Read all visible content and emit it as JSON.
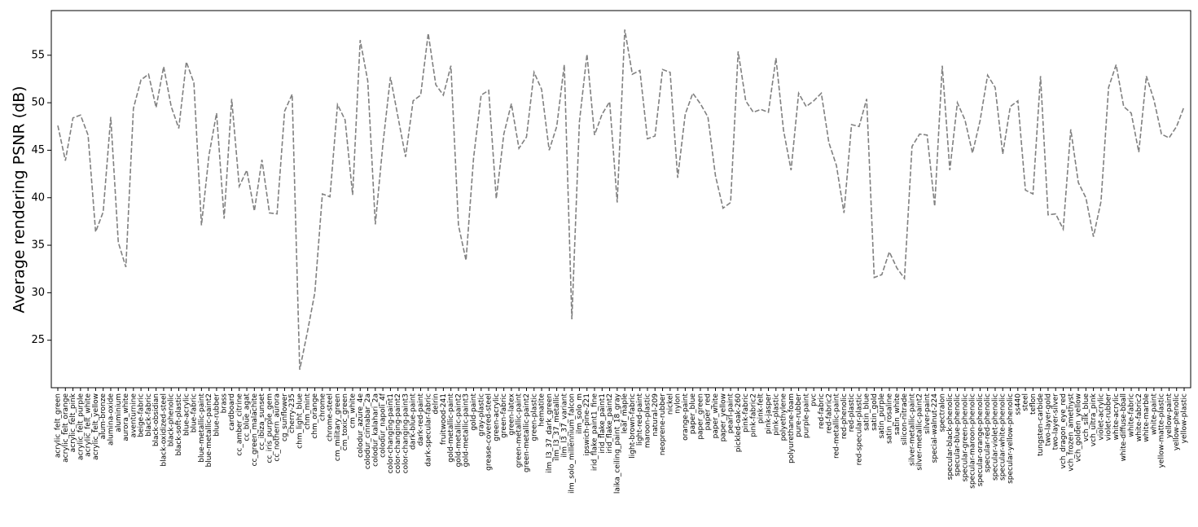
{
  "chart_data": {
    "type": "line",
    "y_label": "Average rendering PSNR (dB)",
    "categories": [
      "acrylic_felt_green",
      "acrylic_felt_orange",
      "acrylic_felt_pink",
      "acrylic_felt_purple",
      "acrylic_felt_white",
      "acrylic_felt_yellow",
      "alum-bronze",
      "alumina-oxide",
      "aluminium",
      "aurora_white",
      "aventurnine",
      "beige-fabric",
      "black-fabric",
      "black-obsidian",
      "black-oxidized-steel",
      "black-phenolic",
      "black-soft-plastic",
      "blue-acrylic",
      "blue-fabric",
      "blue-metallic-paint",
      "blue-metallic-paint2",
      "blue-rubber",
      "brass",
      "cardboard",
      "cc_amber_citrine",
      "cc_blue_agat",
      "cc_green_malachite",
      "cc_ibiza_sunset",
      "cc_iris_purple_gem",
      "cc_nothern_aurora",
      "cg_sunflower",
      "cherry-235",
      "chm_light_blue",
      "chm_mint",
      "chm_orange",
      "chrome",
      "chrome-steel",
      "cm_military_green",
      "cm_toxic_green",
      "cm_white",
      "colodur_azure_4e",
      "colodur_cinnabar_2a",
      "colodur_kalahari_2a",
      "colodur_napoli_4f",
      "color-changing-paint1",
      "color-changing-paint2",
      "color-changing-paint3",
      "dark-blue-paint",
      "dark-red-paint",
      "dark-specular-fabric",
      "delrin",
      "fruitwood-241",
      "gold-metallic-paint",
      "gold-metallic-paint2",
      "gold-metallic-paint3",
      "gold-paint",
      "gray-plastic",
      "grease-covered-steel",
      "green-acrylic",
      "green-fabric",
      "green-latex",
      "green-metallic-paint",
      "green-metallic-paint2",
      "green-plastic",
      "hematite",
      "ilm_l3_37_dark_green",
      "ilm_l3_37_metallic",
      "ilm_l3_37_variant",
      "ilm_solo_millennium_falcon",
      "ilm_solo_m",
      "ipswich-pine-221",
      "irid_flake_paint1_fine",
      "irid_flake_paint1",
      "irid_flake_paint2",
      "laika_ceiling_paint_18_gray",
      "leaf_maple",
      "light-brown-fabric",
      "light-red-paint",
      "maroon-plastic",
      "natural-209",
      "neoprene-rubber",
      "nickel",
      "nylon",
      "orange-paint",
      "paper_blue",
      "paper_green",
      "paper_red",
      "paper_white",
      "paper_yellow",
      "pearl-paint",
      "pickled-oak-260",
      "pink-fabric",
      "pink-fabric2",
      "pink-felt",
      "pink-jasper",
      "pink-plastic",
      "polyethylene",
      "polyurethane-foam",
      "pure-rubber",
      "purple-paint",
      "pvc",
      "red-fabric",
      "red-fabric2",
      "red-metallic-paint",
      "red-phenolic",
      "red-plastic",
      "red-specular-plastic",
      "satin_blue",
      "satin_gold",
      "satin_purple",
      "satin_rosaline",
      "satin_white",
      "silicon-nitrade",
      "silver-metallic-paint",
      "silver-metallic-paint2",
      "silver-paint",
      "special-walnut-224",
      "spectralon",
      "specular-black-phenolic",
      "specular-blue-phenolic",
      "specular-green-phenolic",
      "specular-maroon-phenolic",
      "specular-orange-phenolic",
      "specular-red-phenolic",
      "specular-violet-phenolic",
      "specular-white-phenolic",
      "specular-yellow-phenolic",
      "ss440",
      "steel",
      "teflon",
      "tungsten-carbide",
      "two-layer-gold",
      "two-layer-silver",
      "vch_dragon_eye_red",
      "vch_frozen_amethyst",
      "vch_golden_yellow",
      "vch_silk_blue",
      "vch_ultra_pink",
      "violet-acrylic",
      "violet-rubber",
      "white-acrylic",
      "white-diffuse-bball",
      "white-fabric",
      "white-fabric2",
      "white-marble",
      "white-paint",
      "yellow-matte-plastic",
      "yellow-paint",
      "yellow-phenolic",
      "yellow-plastic"
    ],
    "series": [
      {
        "color": "#808080",
        "values": [
          47.6,
          43.9,
          48.4,
          48.7,
          46.6,
          36.4,
          38.5,
          48.5,
          35.3,
          32.7,
          49.4,
          52.4,
          53.0,
          49.5,
          53.8,
          49.6,
          47.3,
          54.3,
          52.1,
          37.1,
          44.5,
          48.9,
          37.8,
          50.4,
          41.2,
          42.9,
          38.6,
          44.0,
          38.4,
          38.3,
          49.1,
          50.9,
          21.9,
          25.8,
          30.0,
          40.4,
          40.1,
          49.8,
          48.2,
          40.3,
          56.6,
          52.3,
          37.2,
          45.6,
          52.7,
          48.5,
          44.3,
          50.2,
          50.8,
          57.3,
          51.9,
          50.8,
          53.9,
          37.1,
          33.4,
          44.2,
          50.8,
          51.3,
          39.9,
          46.7,
          49.9,
          45.2,
          46.4,
          53.2,
          51.4,
          45.0,
          47.5,
          54.0,
          27.2,
          48.0,
          55.1,
          46.6,
          48.8,
          50.1,
          39.5,
          57.7,
          53.0,
          53.4,
          46.2,
          46.5,
          53.5,
          53.2,
          42.1,
          48.8,
          51.0,
          49.9,
          48.5,
          42.3,
          38.9,
          39.5,
          55.4,
          50.2,
          49.0,
          49.3,
          49.0,
          54.7,
          47.1,
          42.9,
          51.0,
          49.6,
          50.2,
          51.0,
          45.8,
          43.4,
          38.4,
          47.7,
          47.5,
          50.4,
          31.6,
          31.9,
          34.3,
          32.6,
          31.5,
          45.4,
          46.7,
          46.6,
          39.1,
          53.9,
          42.9,
          50.0,
          48.2,
          44.7,
          48.1,
          52.9,
          51.6,
          44.6,
          49.6,
          50.2,
          40.8,
          40.4,
          52.8,
          38.2,
          38.3,
          36.7,
          47.2,
          41.6,
          40.0,
          35.9,
          39.6,
          51.6,
          54.0,
          49.6,
          48.9,
          44.8,
          52.8,
          50.3,
          46.7,
          46.3,
          47.5,
          49.6
        ]
      }
    ],
    "ylim": [
      20.0,
      59.7
    ],
    "yticks": [
      25,
      30,
      35,
      40,
      45,
      50,
      55
    ]
  }
}
